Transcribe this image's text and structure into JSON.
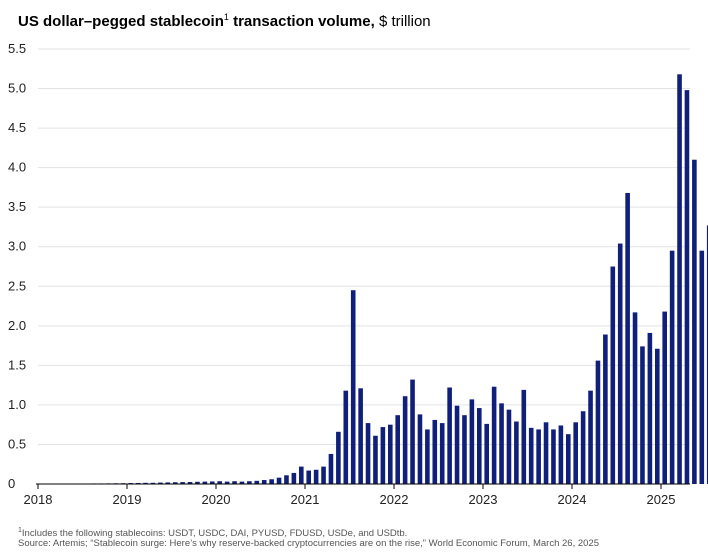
{
  "title": {
    "bold": "US dollar–pegged stablecoin",
    "sup": "1",
    "bold_tail": " transaction volume,",
    "unit": " $ trillion"
  },
  "footnote": {
    "sup": "1",
    "text": "Includes the following stablecoins: USDT, USDC, DAI, PYUSD, FDUSD, USDe, and USDtb."
  },
  "source": "Source: Artemis; “Stablecoin surge: Here’s why reserve-backed cryptocurrencies are on the rise,” World Economic Forum, March 26, 2025",
  "colors": {
    "bar": "#0f1f7a",
    "grid": "#e3e3e3",
    "axis": "#000000"
  },
  "chart_data": {
    "type": "bar",
    "title": "US dollar–pegged stablecoin transaction volume, $ trillion",
    "xlabel": "",
    "ylabel": "",
    "ylim": [
      0,
      5.5
    ],
    "yticks": [
      "0",
      "0.5",
      "1.0",
      "1.5",
      "2.0",
      "2.5",
      "3.0",
      "3.5",
      "4.0",
      "4.5",
      "5.0",
      "5.5"
    ],
    "xticks": [
      "2018",
      "2019",
      "2020",
      "2021",
      "2022",
      "2023",
      "2024",
      "2025"
    ],
    "grid": true,
    "start_month": "2018-01",
    "values": [
      0.003,
      0.004,
      0.005,
      0.004,
      0.005,
      0.006,
      0.006,
      0.007,
      0.007,
      0.008,
      0.009,
      0.01,
      0.012,
      0.013,
      0.015,
      0.015,
      0.018,
      0.02,
      0.022,
      0.024,
      0.025,
      0.028,
      0.03,
      0.032,
      0.035,
      0.03,
      0.035,
      0.03,
      0.035,
      0.04,
      0.05,
      0.06,
      0.08,
      0.11,
      0.14,
      0.22,
      0.17,
      0.18,
      0.22,
      0.38,
      0.66,
      1.18,
      2.45,
      1.21,
      0.77,
      0.61,
      0.72,
      0.75,
      0.87,
      1.11,
      1.32,
      0.88,
      0.69,
      0.81,
      0.77,
      1.22,
      0.99,
      0.87,
      1.07,
      0.96,
      0.76,
      1.23,
      1.02,
      0.94,
      0.79,
      1.19,
      0.71,
      0.69,
      0.78,
      0.69,
      0.74,
      0.63,
      0.78,
      0.92,
      1.18,
      1.56,
      1.89,
      2.75,
      3.04,
      3.68,
      2.17,
      1.74,
      1.91,
      1.71,
      2.18,
      2.95,
      5.18,
      4.98,
      4.1,
      2.95,
      3.27
    ]
  }
}
